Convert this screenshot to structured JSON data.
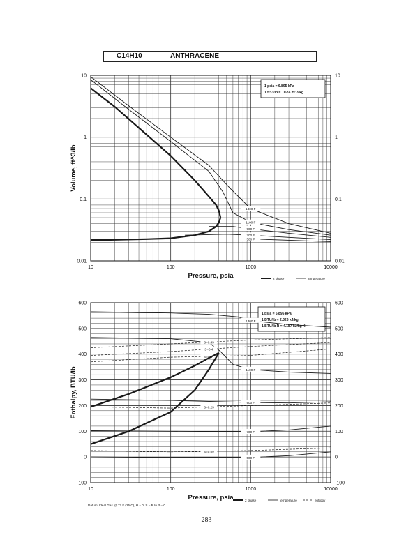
{
  "title": {
    "formula": "C14H10",
    "name": "ANTHRACENE"
  },
  "page_number": "283",
  "colors": {
    "line": "#1a1a1a",
    "grid": "#333333",
    "background": "#ffffff"
  },
  "chart_data": [
    {
      "type": "line",
      "xscale": "log",
      "yscale": "log",
      "xlim": [
        10,
        10000
      ],
      "ylim": [
        0.01,
        10
      ],
      "xlabel": "Pressure,  psia",
      "ylabel": "Volume, ft^3/lb",
      "xticks": [
        "10",
        "100",
        "1000",
        "10000"
      ],
      "yticks": [
        "0.01",
        "0.1",
        "1",
        "10"
      ],
      "conversions": [
        "1 psia  =  6.895 kPa",
        "1 ft^3/lb  =  .0624 m^3/kg"
      ],
      "legend": [
        {
          "label": "2 phase",
          "style": "thick"
        },
        {
          "label": "temperature",
          "style": "thin"
        }
      ],
      "legend_position": "bottom-right",
      "grid": true,
      "two_phase_dome": {
        "vapor": {
          "x": [
            10,
            20,
            50,
            100,
            200,
            300,
            370,
            400,
            420
          ],
          "y": [
            6.2,
            3.1,
            1.1,
            0.5,
            0.2,
            0.11,
            0.08,
            0.065,
            0.05
          ]
        },
        "liquid": {
          "x": [
            10,
            50,
            100,
            200,
            300,
            370,
            400,
            420
          ],
          "y": [
            0.0215,
            0.0225,
            0.0232,
            0.026,
            0.03,
            0.036,
            0.042,
            0.05
          ]
        }
      },
      "series": [
        {
          "name": "1300 F",
          "x": [
            10,
            30,
            100,
            300,
            550,
            1000,
            3000,
            10000
          ],
          "y": [
            9.5,
            3.2,
            1.0,
            0.35,
            0.15,
            0.07,
            0.04,
            0.028
          ]
        },
        {
          "name": "1100 F",
          "x": [
            10,
            30,
            100,
            300,
            450,
            600,
            1000,
            3000,
            10000
          ],
          "y": [
            8.5,
            2.8,
            0.85,
            0.28,
            0.13,
            0.06,
            0.042,
            0.032,
            0.026
          ]
        },
        {
          "name": "900 F",
          "x": [
            300,
            600,
            1000,
            3000,
            10000
          ],
          "y": [
            0.036,
            0.036,
            0.033,
            0.028,
            0.024
          ]
        },
        {
          "name": "700 F",
          "x": [
            150,
            500,
            1000,
            3000,
            10000
          ],
          "y": [
            0.026,
            0.027,
            0.026,
            0.024,
            0.022
          ]
        },
        {
          "name": "500 F",
          "x": [
            10,
            100,
            1000,
            10000
          ],
          "y": [
            0.0222,
            0.0226,
            0.0226,
            0.0205
          ]
        }
      ]
    },
    {
      "type": "line",
      "xscale": "log",
      "xlim": [
        10,
        10000
      ],
      "ylim": [
        -100,
        600
      ],
      "xlabel": "Pressure,  psia",
      "ylabel": "Enthalpy, BTU/lb",
      "xticks": [
        "10",
        "100",
        "1000",
        "10000"
      ],
      "yticks": [
        "-100",
        "0",
        "100",
        "200",
        "300",
        "400",
        "500",
        "600"
      ],
      "conversions": [
        "1 psia  =  6.895 kPa",
        "1 BTU/lb  =  2.326 kJ/kg",
        "1 BTU/lb R  =  4.187 kJ/kg K"
      ],
      "datum_note": "Datum: Ideal Gas @ 77 F (25 C),  H = 0,  S = R ln P = 0",
      "legend": [
        {
          "label": "2 phase",
          "style": "thick"
        },
        {
          "label": "temperature",
          "style": "thin"
        },
        {
          "label": "entropy",
          "style": "dashed"
        }
      ],
      "legend_position": "bottom-right",
      "grid": true,
      "two_phase_dome": {
        "vapor": {
          "x": [
            10,
            30,
            100,
            200,
            300,
            400
          ],
          "y": [
            195,
            245,
            310,
            355,
            385,
            405
          ]
        },
        "liquid": {
          "x": [
            10,
            30,
            100,
            200,
            300,
            400
          ],
          "y": [
            50,
            100,
            175,
            260,
            340,
            405
          ]
        }
      },
      "series": [
        {
          "name": "1300 F",
          "x": [
            10,
            100,
            300,
            700,
            1000,
            3000,
            10000
          ],
          "y": [
            565,
            560,
            555,
            545,
            530,
            515,
            505
          ]
        },
        {
          "name": "1100 F",
          "x": [
            10,
            100,
            300,
            420,
            600,
            1000,
            3000,
            10000
          ],
          "y": [
            465,
            460,
            445,
            410,
            360,
            340,
            330,
            325
          ]
        },
        {
          "name": "900 F",
          "x": [
            10,
            100,
            1000,
            3000,
            10000
          ],
          "y": [
            225,
            220,
            212,
            210,
            215
          ]
        },
        {
          "name": "700 F",
          "x": [
            10,
            100,
            1000,
            3000,
            10000
          ],
          "y": [
            102,
            100,
            98,
            105,
            120
          ]
        },
        {
          "name": "500 F",
          "x": [
            10,
            100,
            1000,
            3000,
            10000
          ],
          "y": [
            0,
            -2,
            -2,
            5,
            20
          ]
        }
      ],
      "entropy_lines": [
        {
          "name": "S=0.43",
          "x": [
            10,
            100,
            1000,
            10000
          ],
          "y": [
            425,
            440,
            455,
            465
          ]
        },
        {
          "name": "S=0.4",
          "x": [
            10,
            100,
            1000,
            10000
          ],
          "y": [
            395,
            410,
            430,
            445
          ]
        },
        {
          "name": "S=0.37",
          "x": [
            10,
            100,
            1000,
            10000
          ],
          "y": [
            370,
            388,
            395,
            420
          ]
        },
        {
          "name": "S=0.23",
          "x": [
            10,
            100,
            1000,
            10000
          ],
          "y": [
            195,
            190,
            200,
            210
          ]
        },
        {
          "name": "S=0.09",
          "x": [
            10,
            100,
            1000,
            10000
          ],
          "y": [
            25,
            20,
            25,
            35
          ]
        }
      ]
    }
  ]
}
